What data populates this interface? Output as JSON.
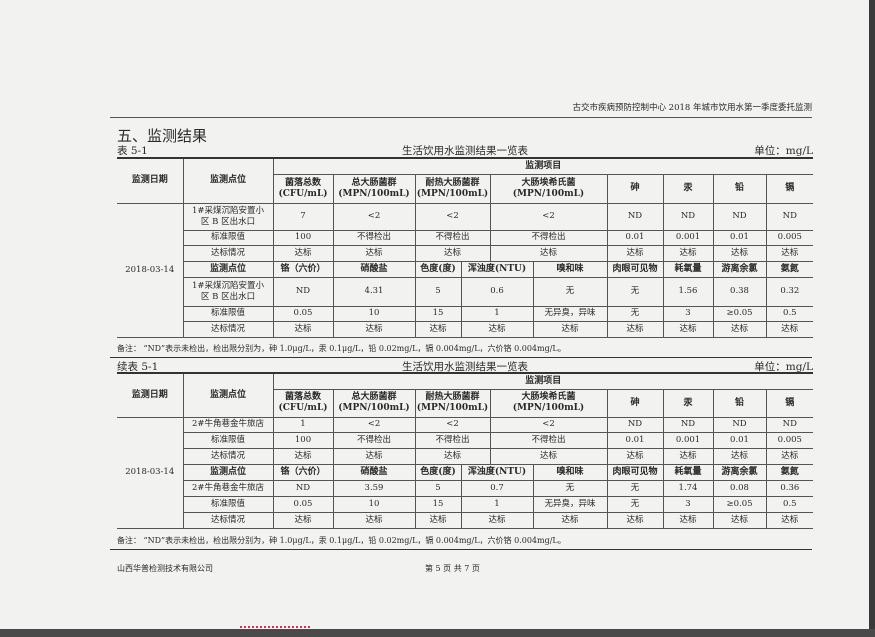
{
  "header_text": "古交市疾病预防控制中心 2018 年城市饮用水第一季度委托监测",
  "section_title": "五、监测结果",
  "tables": [
    {
      "label": "表 5-1",
      "title": "生活饮用水监测结果一览表",
      "unit": "单位：mg/L",
      "head": {
        "date": "监测日期",
        "location": "监测点位",
        "group": "监测项目",
        "cols": [
          "菌落总数\n(CFU/mL)",
          "总大肠菌群\n(MPN/100mL)",
          "耐热大肠菌群\n(MPN/100mL)",
          "大肠埃希氏菌\n(MPN/100mL)",
          "砷",
          "汞",
          "铅",
          "镉"
        ]
      },
      "date": "2018-03-14",
      "rows1": [
        [
          "1#采煤沉陷安置小\n区 B 区出水口",
          "7",
          "<2",
          "<2",
          "<2",
          "ND",
          "ND",
          "ND",
          "ND"
        ],
        [
          "标准限值",
          "100",
          "不得检出",
          "不得检出",
          "不得检出",
          "0.01",
          "0.001",
          "0.01",
          "0.005"
        ],
        [
          "达标情况",
          "达标",
          "达标",
          "达标",
          "达标",
          "达标",
          "达标",
          "达标",
          "达标"
        ]
      ],
      "head2": [
        "监测点位",
        "铬（六价）",
        "硝酸盐",
        "色度(度)",
        "浑浊度(NTU)",
        "嗅和味",
        "肉眼可见物",
        "耗氧量",
        "游离余氯",
        "氨氮"
      ],
      "rows2": [
        [
          "1#采煤沉陷安置小\n区 B 区出水口",
          "ND",
          "4.31",
          "5",
          "0.6",
          "无",
          "无",
          "1.56",
          "0.38",
          "0.32"
        ],
        [
          "标准限值",
          "0.05",
          "10",
          "15",
          "1",
          "无异臭，异味",
          "无",
          "3",
          "≥0.05",
          "0.5"
        ],
        [
          "达标情况",
          "达标",
          "达标",
          "达标",
          "达标",
          "达标",
          "达标",
          "达标",
          "达标",
          "达标"
        ]
      ],
      "note": "备注：  “ND”表示未检出，检出限分别为，砷 1.0μg/L，汞 0.1μg/L，铅 0.02mg/L，镉 0.004mg/L，六价铬 0.004mg/L。"
    },
    {
      "label": "续表 5-1",
      "title": "生活饮用水监测结果一览表",
      "unit": "单位：mg/L",
      "head": {
        "date": "监测日期",
        "location": "监测点位",
        "group": "监测项目",
        "cols": [
          "菌落总数\n(CFU/mL)",
          "总大肠菌群\n(MPN/100mL)",
          "耐热大肠菌群\n(MPN/100mL)",
          "大肠埃希氏菌\n(MPN/100mL)",
          "砷",
          "汞",
          "铅",
          "镉"
        ]
      },
      "date": "2018-03-14",
      "rows1": [
        [
          "2#牛角巷金牛旅店",
          "1",
          "<2",
          "<2",
          "<2",
          "ND",
          "ND",
          "ND",
          "ND"
        ],
        [
          "标准限值",
          "100",
          "不得检出",
          "不得检出",
          "不得检出",
          "0.01",
          "0.001",
          "0.01",
          "0.005"
        ],
        [
          "达标情况",
          "达标",
          "达标",
          "达标",
          "达标",
          "达标",
          "达标",
          "达标",
          "达标"
        ]
      ],
      "head2": [
        "监测点位",
        "铬（六价）",
        "硝酸盐",
        "色度(度)",
        "浑浊度(NTU)",
        "嗅和味",
        "肉眼可见物",
        "耗氧量",
        "游离余氯",
        "氨氮"
      ],
      "rows2": [
        [
          "2#牛角巷金牛旅店",
          "ND",
          "3.59",
          "5",
          "0.7",
          "无",
          "无",
          "1.74",
          "0.08",
          "0.36"
        ],
        [
          "标准限值",
          "0.05",
          "10",
          "15",
          "1",
          "无异臭，异味",
          "无",
          "3",
          "≥0.05",
          "0.5"
        ],
        [
          "达标情况",
          "达标",
          "达标",
          "达标",
          "达标",
          "达标",
          "达标",
          "达标",
          "达标",
          "达标"
        ]
      ],
      "note": "备注：  “ND”表示未检出，检出限分别为，砷 1.0μg/L，汞 0.1μg/L，铅 0.02mg/L，镉 0.004mg/L，六价铬 0.004mg/L。"
    }
  ],
  "footer": {
    "company": "山西华普检测技术有限公司",
    "page": "第 5 页   共 7 页"
  }
}
